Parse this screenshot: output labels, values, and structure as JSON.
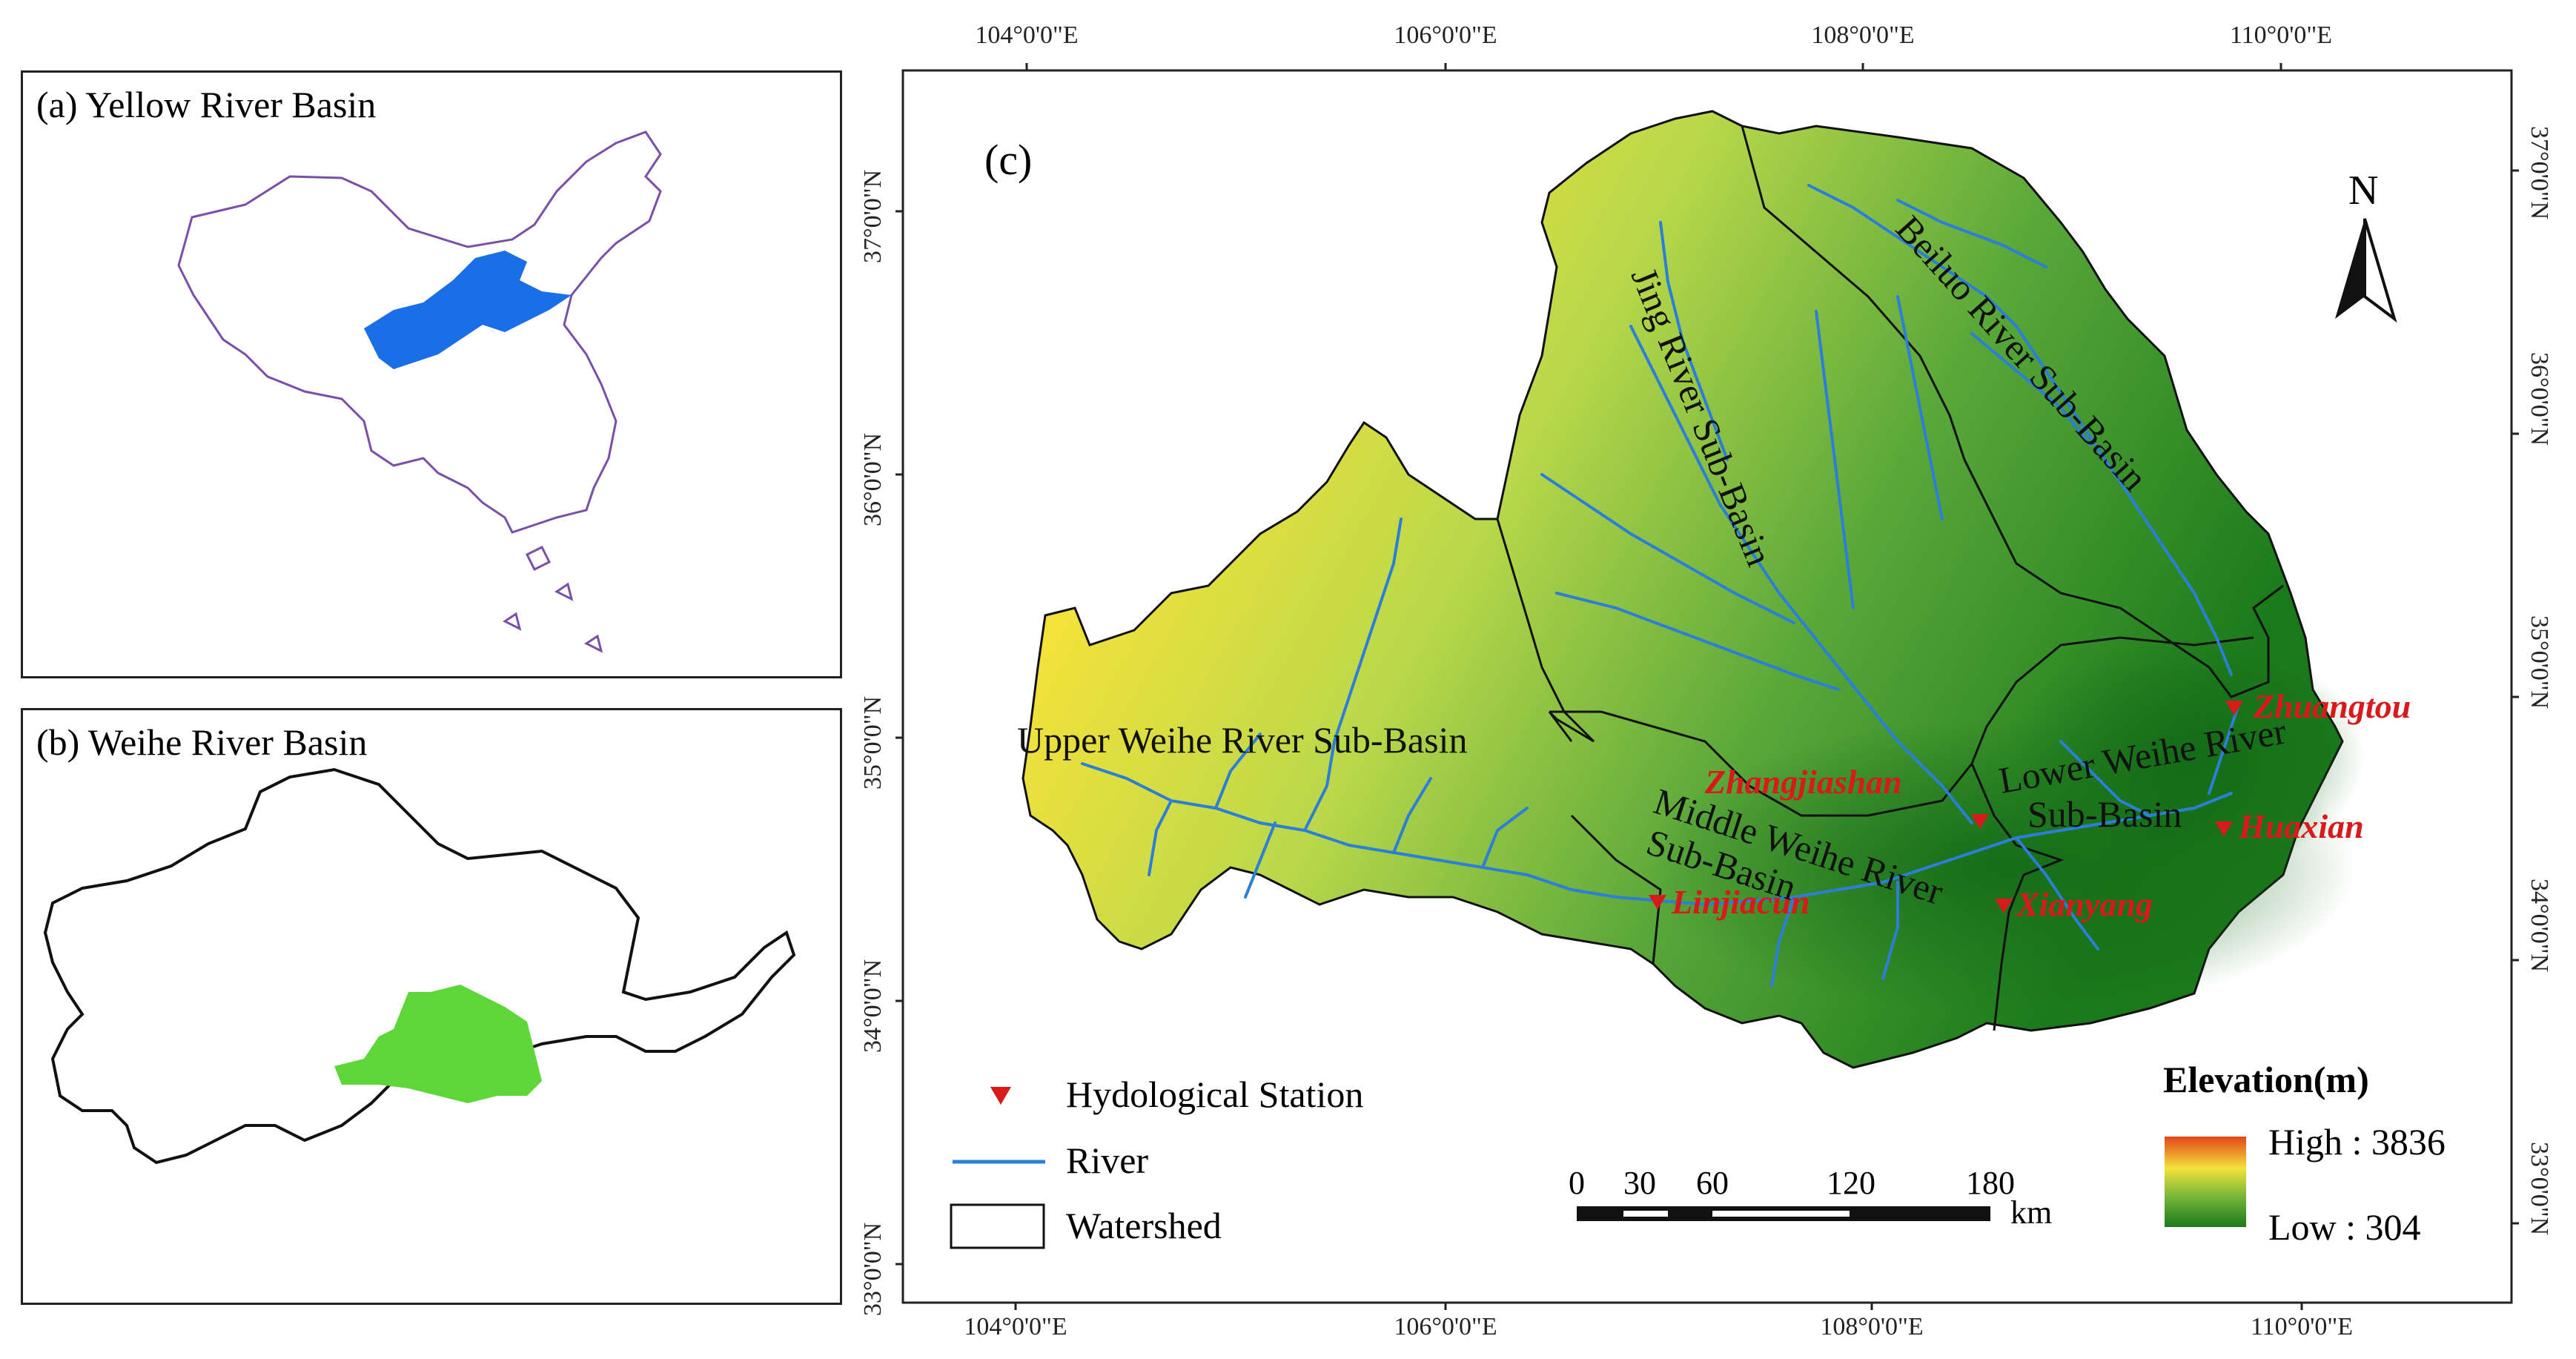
{
  "panel_a": {
    "title": "(a) Yellow River Basin"
  },
  "panel_b": {
    "title": "(b) Weihe River Basin"
  },
  "panel_c": {
    "label": "(c)",
    "top_lon_ticks": [
      "104°0'0\"E",
      "106°0'0\"E",
      "108°0'0\"E",
      "110°0'0\"E"
    ],
    "bottom_lon_ticks": [
      "104°0'0\"E",
      "106°0'0\"E",
      "108°0'0\"E",
      "110°0'0\"E"
    ],
    "left_lat_ticks": [
      "37°0'0\"N",
      "36°0'0\"N",
      "35°0'0\"N",
      "34°0'0\"N",
      "33°0'0\"N"
    ],
    "right_lat_ticks": [
      "37°0'0\"N",
      "36°0'0\"N",
      "35°0'0\"N",
      "34°0'0\"N",
      "33°0'0\"N"
    ],
    "north_arrow": "N",
    "sub_basins": {
      "jing": "Jing River Sub-Basin",
      "beiluo": "Beiluo River Sub-Basin",
      "upper": "Upper Weihe River Sub-Basin",
      "middle_1": "Middle Weihe River",
      "middle_2": "Sub-Basin",
      "lower_1": "Lower Weihe River",
      "lower_2": "Sub-Basin"
    },
    "stations": {
      "zhuangtou": "Zhuangtou",
      "zhangjiashan": "Zhangjiashan",
      "huaxian": "Huaxian",
      "linjiacun": "Linjiacun",
      "xianyang": "Xianyang"
    },
    "legend": {
      "station": "Hydological Station",
      "river": "River",
      "watershed": "Watershed"
    },
    "elevation": {
      "title": "Elevation(m)",
      "high": "High : 3836",
      "low": "Low : 304"
    },
    "scale_bar": {
      "ticks": [
        "0",
        "30",
        "60",
        "120",
        "180"
      ],
      "unit": "km"
    }
  },
  "colors": {
    "yellow_basin": "#1a6fe8",
    "weihe_basin": "#5ed63a",
    "china_outline": "#7a4fa8",
    "river": "#2b7fd6",
    "station": "#d81a1a",
    "elev_high": "#e0451a",
    "elev_mid": "#f5e23a",
    "elev_low": "#1a7a1a"
  }
}
